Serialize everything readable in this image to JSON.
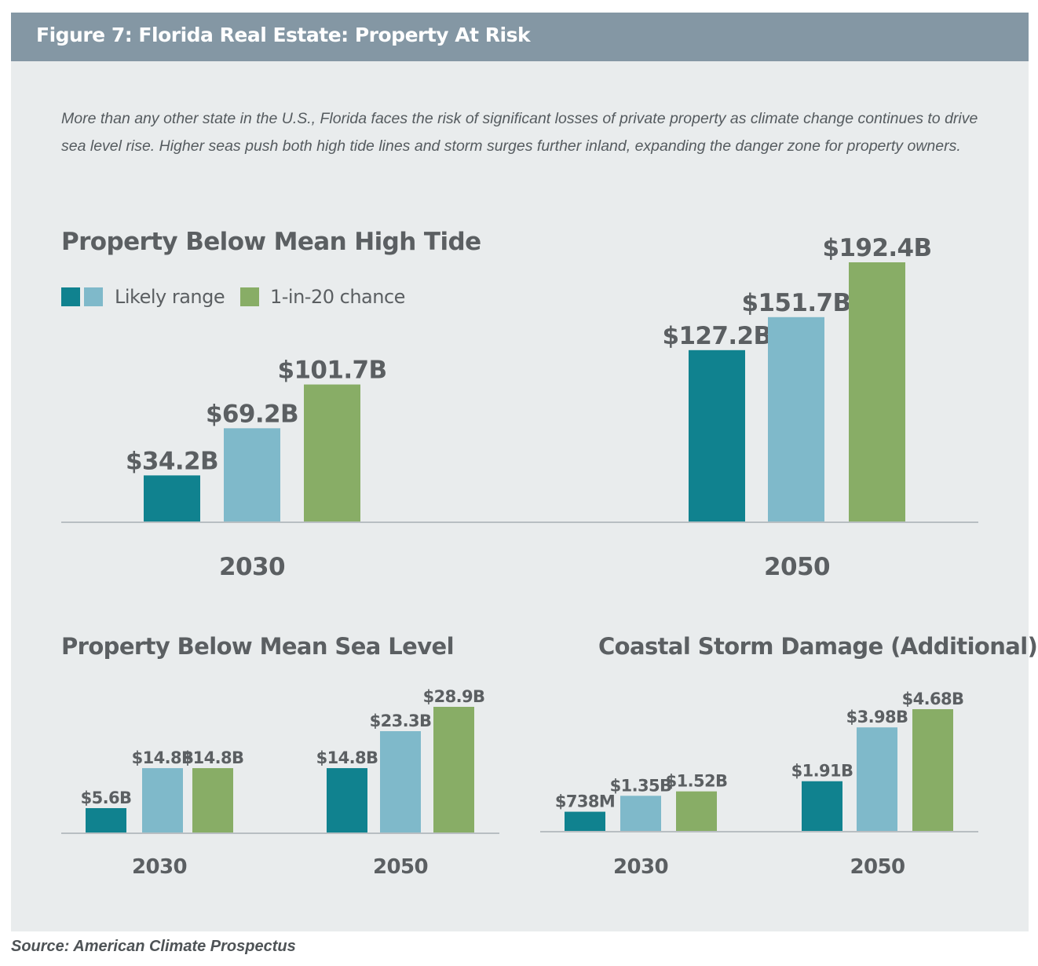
{
  "header": {
    "title": "Figure 7: Florida Real Estate: Property At Risk"
  },
  "intro": "More than any other state in the U.S., Florida faces the risk of significant losses of private property as climate change continues to drive sea level rise. Higher seas push both high tide lines and storm surges further inland, expanding the danger zone for property owners.",
  "legend": {
    "likely_label": "Likely range",
    "chance_label": "1-in-20 chance"
  },
  "source": "Source: American Climate Prospectus",
  "colors": {
    "likely_low": "#10828f",
    "likely_high": "#7fb9ca",
    "chance": "#88ad66",
    "label": "#5b5f62",
    "axis": "#b8bec2"
  },
  "chart_data": [
    {
      "type": "bar",
      "title": "Property Below Mean High Tide",
      "categories": [
        "2030",
        "2050"
      ],
      "series": [
        {
          "values": [
            34.2,
            127.2
          ],
          "labels": [
            "$34.2B",
            "$127.2B"
          ]
        },
        {
          "values": [
            69.2,
            151.7
          ],
          "labels": [
            "$69.2B",
            "$151.7B"
          ]
        },
        {
          "values": [
            101.7,
            192.4
          ],
          "labels": [
            "$101.7B",
            "$192.4B"
          ]
        }
      ],
      "unit": "$B"
    },
    {
      "type": "bar",
      "title": "Property Below Mean Sea Level",
      "categories": [
        "2030",
        "2050"
      ],
      "series": [
        {
          "values": [
            5.6,
            14.8
          ],
          "labels": [
            "$5.6B",
            "$14.8B"
          ]
        },
        {
          "values": [
            14.8,
            23.3
          ],
          "labels": [
            "$14.8B",
            "$23.3B"
          ]
        },
        {
          "values": [
            14.8,
            28.9
          ],
          "labels": [
            "$14.8B",
            "$28.9B"
          ]
        }
      ],
      "unit": "$B"
    },
    {
      "type": "bar",
      "title": "Coastal Storm Damage (Additional)",
      "categories": [
        "2030",
        "2050"
      ],
      "series": [
        {
          "values": [
            0.738,
            1.91
          ],
          "labels": [
            "$738M",
            "$1.91B"
          ]
        },
        {
          "values": [
            1.35,
            3.98
          ],
          "labels": [
            "$1.35B",
            "$3.98B"
          ]
        },
        {
          "values": [
            1.52,
            4.68
          ],
          "labels": [
            "$1.52B",
            "$4.68B"
          ]
        }
      ],
      "unit": "$B"
    }
  ]
}
